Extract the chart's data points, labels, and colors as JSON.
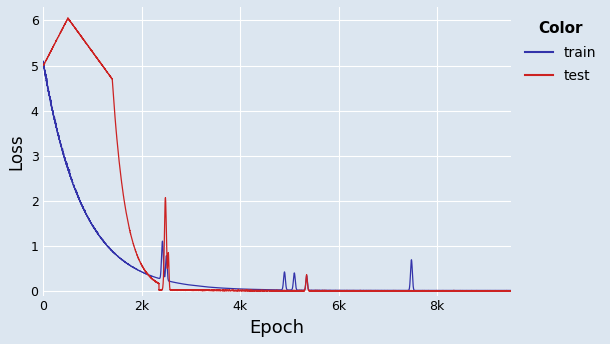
{
  "title": "",
  "xlabel": "Epoch",
  "ylabel": "Loss",
  "legend_title": "Color",
  "legend_labels": [
    "train",
    "test"
  ],
  "train_color": "#3333aa",
  "test_color": "#cc2222",
  "background_color": "#dce6f0",
  "plot_bg_color": "#dce6f0",
  "xlim": [
    0,
    9500
  ],
  "ylim": [
    -0.1,
    6.3
  ],
  "xticks": [
    0,
    2000,
    4000,
    6000,
    8000
  ],
  "xtick_labels": [
    "0",
    "2k",
    "4k",
    "6k",
    "8k"
  ],
  "yticks": [
    0,
    1,
    2,
    3,
    4,
    5,
    6
  ]
}
